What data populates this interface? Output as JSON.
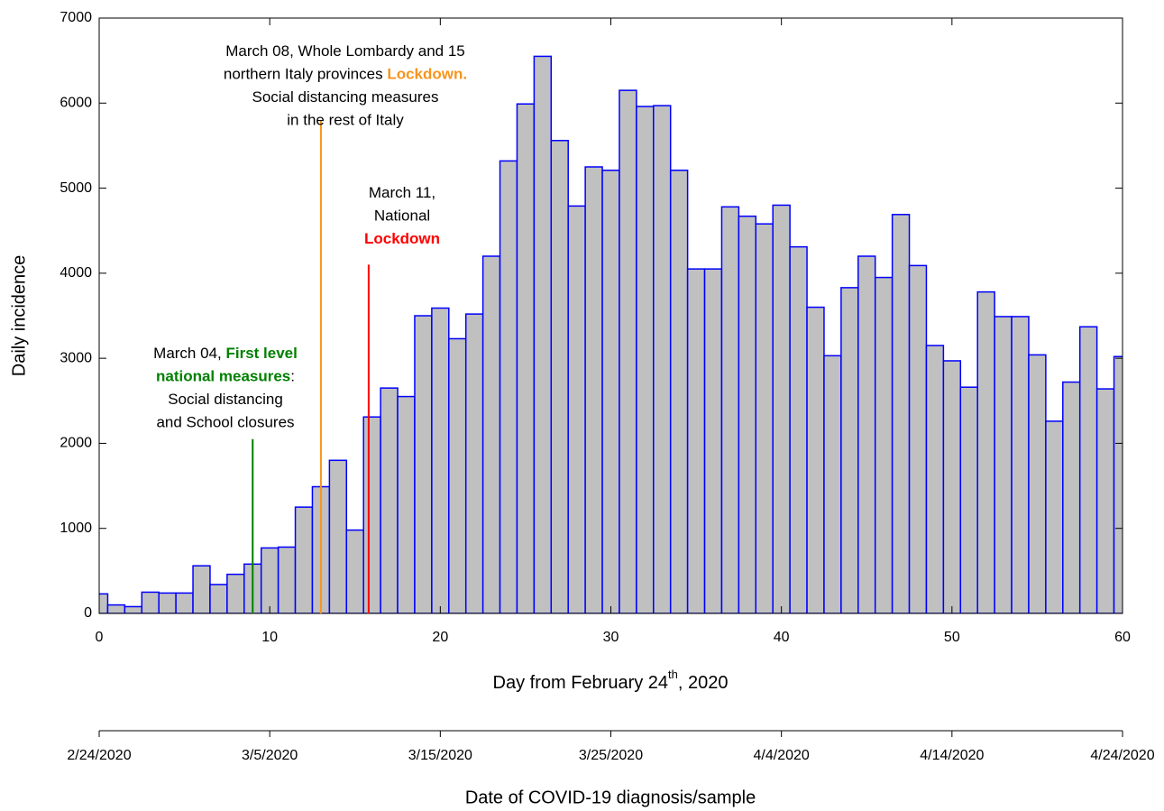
{
  "chart_data": {
    "type": "histogram",
    "y_label": "Daily incidence",
    "x_label": {
      "text": "Day from February 24",
      "sup": "th",
      "tail": ", 2020"
    },
    "x2_label": "Date of COVID-19 diagnosis/sample",
    "bins": [
      -0.5,
      0.5,
      1.5,
      2.5,
      3.5,
      4.5,
      5.5,
      6.5,
      7.5,
      8.5,
      9.5,
      10.5,
      11.5,
      12.5,
      13.5,
      14.5,
      15.5,
      16.5,
      17.5,
      18.5,
      19.5,
      20.5,
      21.5,
      22.5,
      23.5,
      24.5,
      25.5,
      26.5,
      27.5,
      28.5,
      29.5,
      30.5,
      31.5,
      32.5,
      33.5,
      34.5,
      35.5,
      36.5,
      37.5,
      38.5,
      39.5,
      40.5,
      41.5,
      42.5,
      43.5,
      44.5,
      45.5,
      46.5,
      47.5,
      48.5,
      49.5,
      50.5,
      51.5,
      52.5,
      53.5,
      54.5,
      55.5,
      56.5,
      57.5,
      58.5,
      59.5,
      60.5
    ],
    "values": [
      230,
      100,
      80,
      250,
      240,
      240,
      560,
      340,
      460,
      580,
      770,
      780,
      1250,
      1490,
      1800,
      980,
      2310,
      2650,
      2550,
      3500,
      3590,
      3230,
      3520,
      4200,
      5320,
      5990,
      6550,
      5560,
      4790,
      5250,
      5210,
      6150,
      5960,
      5970,
      5210,
      4050,
      4050,
      4780,
      4670,
      4580,
      4800,
      4310,
      3600,
      3030,
      3830,
      4200,
      3950,
      4690,
      4090,
      3150,
      2970,
      2660,
      3780,
      3490,
      3490,
      3040,
      2260,
      2720,
      3370,
      2640,
      3020
    ],
    "fill_color": "#c0c0c0",
    "edge_color": "#0000ff",
    "xlim": [
      0,
      60
    ],
    "xticks": [
      0,
      10,
      20,
      30,
      40,
      50,
      60
    ],
    "ylim": [
      0,
      7000
    ],
    "yticks": [
      0,
      1000,
      2000,
      3000,
      4000,
      5000,
      6000,
      7000
    ],
    "x2ticks": [
      {
        "value": 0,
        "label": "2/24/2020"
      },
      {
        "value": 10,
        "label": "3/5/2020"
      },
      {
        "value": 20,
        "label": "3/15/2020"
      },
      {
        "value": 30,
        "label": "3/25/2020"
      },
      {
        "value": 40,
        "label": "4/4/2020"
      },
      {
        "value": 50,
        "label": "4/14/2020"
      },
      {
        "value": 60,
        "label": "4/24/2020"
      }
    ],
    "annotations": [
      {
        "x": 9,
        "y_top": 2050,
        "color": "#008000",
        "lines": [
          [
            {
              "text": "March 04, "
            },
            {
              "text": "First level",
              "highlight": true
            }
          ],
          [
            {
              "text": "national measures",
              "highlight": true
            },
            {
              "text": ":"
            }
          ],
          [
            {
              "text": "Social distancing"
            }
          ],
          [
            {
              "text": "and School closures"
            }
          ]
        ]
      },
      {
        "x": 13,
        "y_top": 5800,
        "color": "#f7941d",
        "lines": [
          [
            {
              "text": "March 08, Whole Lombardy and 15"
            }
          ],
          [
            {
              "text": "northern Italy provinces "
            },
            {
              "text": "Lockdown.",
              "highlight": true
            }
          ],
          [
            {
              "text": "Social distancing measures"
            }
          ],
          [
            {
              "text": "in the rest of Italy"
            }
          ]
        ]
      },
      {
        "x": 15.8,
        "y_top": 4100,
        "color": "#ff0000",
        "lines": [
          [
            {
              "text": "March 11,"
            }
          ],
          [
            {
              "text": "National"
            }
          ],
          [
            {
              "text": "Lockdown",
              "highlight": true
            }
          ]
        ]
      }
    ]
  }
}
